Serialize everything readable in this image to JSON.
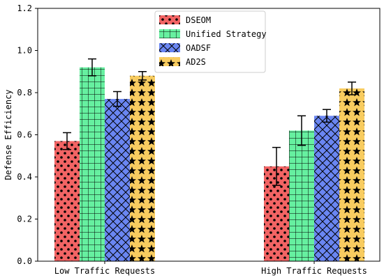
{
  "chart_data": {
    "type": "bar",
    "categories": [
      "Low Traffic Requests",
      "High Traffic Requests"
    ],
    "ylabel": "Defense Efficiency",
    "xlabel": "",
    "ylim": [
      0,
      1.2
    ],
    "yticks": [
      "0.0",
      "0.2",
      "0.4",
      "0.6",
      "0.8",
      "1.0",
      "1.2"
    ],
    "grid": false,
    "legend_position": "top-center",
    "series": [
      {
        "name": "DSEOM",
        "values": [
          0.57,
          0.45
        ],
        "errors": [
          0.04,
          0.09
        ],
        "color": "#f26464",
        "pattern": "dots"
      },
      {
        "name": "Unified Strategy",
        "values": [
          0.92,
          0.62
        ],
        "errors": [
          0.04,
          0.07
        ],
        "color": "#66f0a0",
        "pattern": "grid"
      },
      {
        "name": "OADSF",
        "values": [
          0.77,
          0.69
        ],
        "errors": [
          0.035,
          0.03
        ],
        "color": "#6a86f2",
        "pattern": "crosshatch"
      },
      {
        "name": "AD2S",
        "values": [
          0.88,
          0.82
        ],
        "errors": [
          0.02,
          0.03
        ],
        "color": "#f8cc60",
        "pattern": "stars"
      }
    ]
  }
}
